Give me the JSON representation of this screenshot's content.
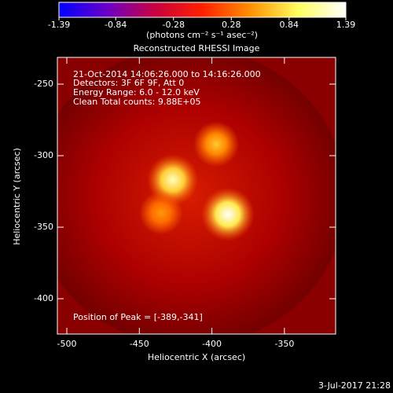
{
  "chart_data": {
    "type": "image",
    "title": "Reconstructed RHESSI Image",
    "x_label": "Heliocentric X (arcsec)",
    "y_label": "Heliocentric Y (arcsec)",
    "colorbar": {
      "lim": [
        -1.39,
        1.39
      ],
      "ticks": [
        -1.39,
        -0.84,
        -0.28,
        0.28,
        0.84,
        1.39
      ],
      "label": "(photons cm⁻² s⁻¹ asec⁻²)",
      "colors": [
        "#0000ff",
        "#6a00c8",
        "#c80040",
        "#ff2000",
        "#ff9000",
        "#ffff60",
        "#ffffff"
      ]
    },
    "annotations": [
      "21-Oct-2014 14:06:26.000 to 14:16:26.000",
      "Detectors: 3F 6F 9F, Att 0",
      "Energy Range: 6.0 - 12.0 keV",
      "Clean    Total counts: 9.88E+05"
    ],
    "peak_note": "Position of Peak = [-389,-341]",
    "footer": "3-Jul-2017 21:28",
    "xlim": [
      -506.5,
      -314.7
    ],
    "ylim": [
      -424.7,
      -231.3
    ],
    "xticks": [
      -500,
      -450,
      -400,
      -350
    ],
    "yticks": [
      -250,
      -300,
      -350,
      -400
    ],
    "sources": [
      {
        "x": -389,
        "y": -341,
        "value": 1.39
      },
      {
        "x": -427,
        "y": -317,
        "value": 1.2
      },
      {
        "x": -397,
        "y": -292,
        "value": 0.7
      },
      {
        "x": -435,
        "y": -340,
        "value": 0.5
      }
    ]
  }
}
